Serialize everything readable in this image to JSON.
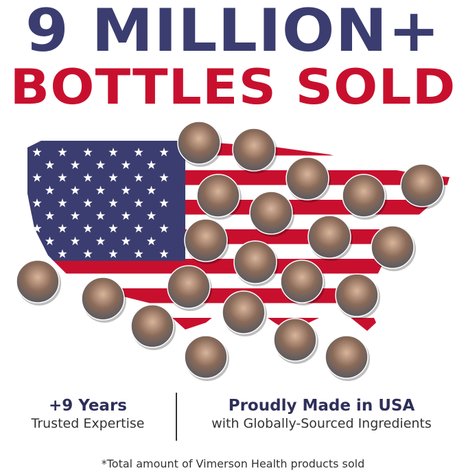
{
  "headline": {
    "line1": "9 MILLION+",
    "line2": "BOTTLES SOLD"
  },
  "stats": [
    {
      "title": "+9 Years",
      "subtitle": "Trusted Expertise"
    },
    {
      "title": "Proudly Made in USA",
      "subtitle": "with Globally-Sourced Ingredients"
    }
  ],
  "footnote": "*Total amount of Vimerson Health products sold",
  "colors": {
    "navy": "#3b3d70",
    "red": "#c8102e",
    "text": "#2e2f5a"
  }
}
